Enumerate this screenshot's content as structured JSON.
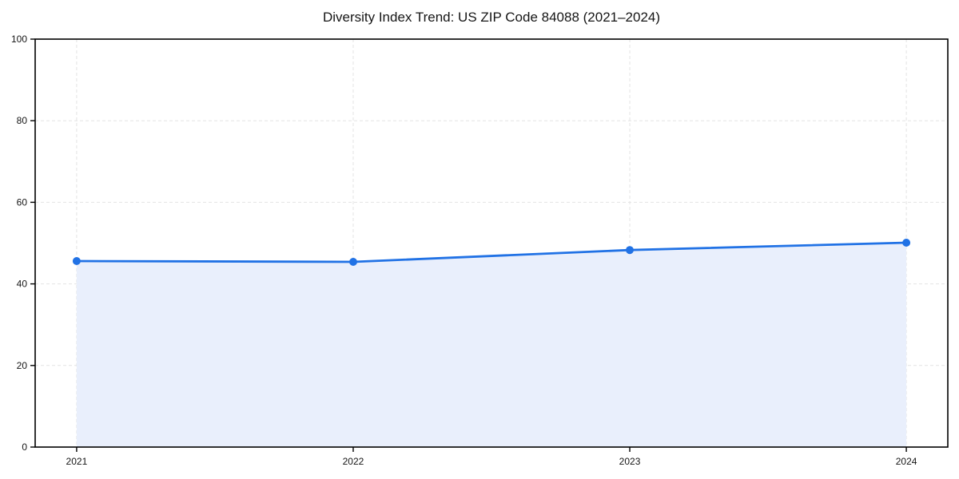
{
  "chart": {
    "title": "Diversity Index Trend: US ZIP Code 84088 (2021–2024)"
  },
  "chart_data": {
    "type": "area",
    "title": "Diversity Index Trend: US ZIP Code 84088 (2021–2024)",
    "xlabel": "",
    "ylabel": "",
    "x": [
      2021,
      2022,
      2023,
      2024
    ],
    "series": [
      {
        "name": "Diversity Index",
        "values": [
          45.6,
          45.4,
          48.3,
          50.1
        ]
      }
    ],
    "xticks": [
      2021,
      2022,
      2023,
      2024
    ],
    "xtick_labels": [
      "2021",
      "2022",
      "2023",
      "2024"
    ],
    "yticks": [
      0,
      20,
      40,
      60,
      80,
      100
    ],
    "ytick_labels": [
      "0",
      "20",
      "40",
      "60",
      "80",
      "100"
    ],
    "xlim": [
      2020.85,
      2024.15
    ],
    "ylim": [
      0,
      100
    ],
    "grid": true,
    "grid_style": "dashed",
    "legend": false,
    "baseline": 0,
    "colors": {
      "line": "#2172e5",
      "marker": "#2172e5",
      "fill": "#e9effc",
      "grid": "#e3e3e3",
      "spine": "#000000",
      "tick_label": "#151515",
      "background": "#ffffff"
    }
  }
}
